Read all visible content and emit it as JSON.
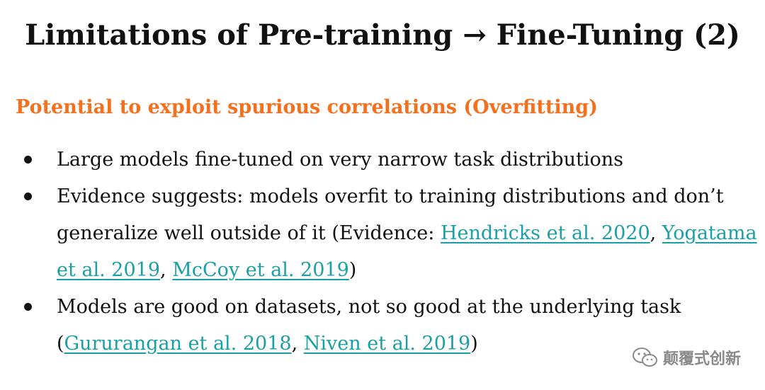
{
  "title": "Limitations of Pre-training → Fine-Tuning (2)",
  "subtitle": "Potential to exploit spurious correlations (Overfitting)",
  "bullets": [
    {
      "text": "Large models fine-tuned on very narrow task distributions"
    },
    {
      "prefix": "Evidence suggests: models overfit to training distributions and don’t generalize well outside of it (Evidence: ",
      "ref1": "Hendricks et al. 2020",
      "sep1": ", ",
      "ref2": "Yogatama et al. 2019",
      "sep2": ", ",
      "ref3": "McCoy et al. 2019",
      "suffix": ")"
    },
    {
      "prefix": "Models are good on datasets, not so good at the underlying task (",
      "ref1": "Gururangan et al. 2018",
      "sep1": ", ",
      "ref2": "Niven et al. 2019",
      "suffix": ")"
    }
  ],
  "watermark": {
    "text": "颠覆式创新",
    "icon": "wechat-icon"
  },
  "colors": {
    "accent": "#f2701e",
    "link": "#1a9fa3",
    "text": "#111111"
  }
}
